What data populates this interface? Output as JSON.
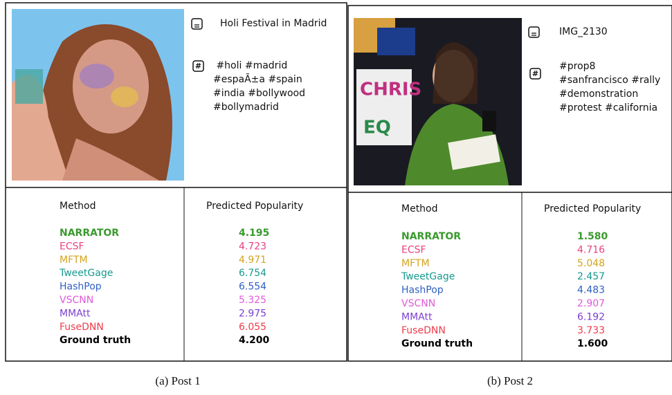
{
  "panels": [
    {
      "caption": "(a) Post 1",
      "title": "Holi Festival in Madrid",
      "hashtags": [
        " #holi #madrid",
        "#espaÃ±a #spain",
        "#india #bollywood",
        "#bollymadrid"
      ],
      "table": {
        "header": [
          "Method",
          "Predicted Popularity"
        ],
        "rows": [
          [
            "NARRATOR",
            "4.195"
          ],
          [
            "ECSF",
            "4.723"
          ],
          [
            "MFTM",
            "4.971"
          ],
          [
            "TweetGage",
            "6.754"
          ],
          [
            "HashPop",
            "6.554"
          ],
          [
            "VSCNN",
            "5.325"
          ],
          [
            "MMAtt",
            "2.975"
          ],
          [
            "FuseDNN",
            "6.055"
          ],
          [
            "Ground truth",
            "4.200"
          ]
        ]
      }
    },
    {
      "caption": "(b) Post 2",
      "title": "IMG_2130",
      "hashtags": [
        "#prop8",
        "#sanfrancisco #rally",
        "#demonstration",
        "#protest #california"
      ],
      "table": {
        "header": [
          "Method",
          "Predicted Popularity"
        ],
        "rows": [
          [
            "NARRATOR",
            "1.580"
          ],
          [
            "ECSF",
            "4.716"
          ],
          [
            "MFTM",
            "5.048"
          ],
          [
            "TweetGage",
            "2.457"
          ],
          [
            "HashPop",
            "4.483"
          ],
          [
            "VSCNN",
            "2.907"
          ],
          [
            "MMAtt",
            "6.192"
          ],
          [
            "FuseDNN",
            "3.733"
          ],
          [
            "Ground truth",
            "1.600"
          ]
        ]
      }
    }
  ],
  "row_colors": [
    "#3a9a2e",
    "#e8407f",
    "#d4a21e",
    "#17998e",
    "#2f5fc4",
    "#e05ad8",
    "#7b3fd1",
    "#ef3b4a",
    "#000000"
  ],
  "bold_rows": [
    0,
    8
  ]
}
